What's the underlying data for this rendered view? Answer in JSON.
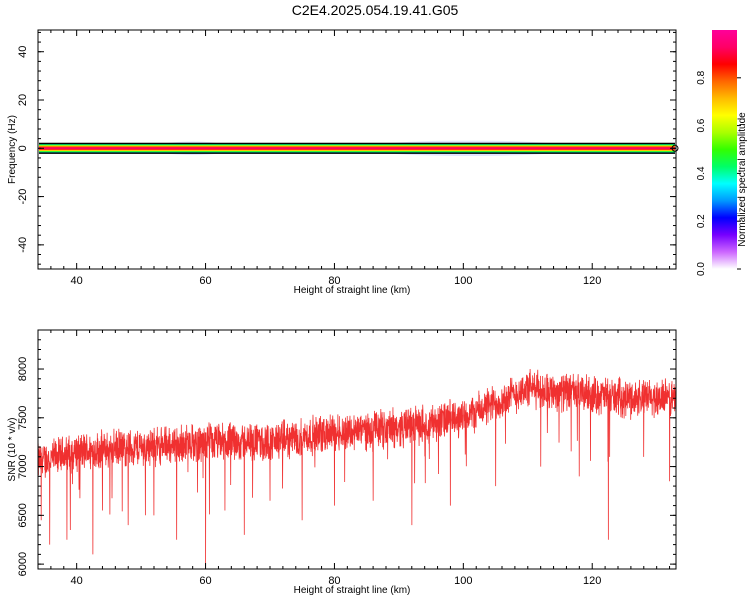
{
  "page": {
    "title": "C2E4.2025.054.19.41.G05"
  },
  "chart_data": [
    {
      "type": "heatmap",
      "xlabel": "Height of straight line (km)",
      "ylabel": "Frequency (Hz)",
      "xlim": [
        34,
        133
      ],
      "ylim": [
        -50,
        49
      ],
      "xticks": [
        40,
        60,
        80,
        100,
        120
      ],
      "yticks": [
        -40,
        -20,
        0,
        20,
        40
      ],
      "xtick_labels": [
        "40",
        "60",
        "80",
        "100",
        "120"
      ],
      "ytick_labels": [
        "-40",
        "-20",
        "0",
        "20",
        "40"
      ],
      "grid": false,
      "band": {
        "center_hz": 0,
        "bands": [
          {
            "half_width_hz": 2.0,
            "color": "#00ffff"
          },
          {
            "half_width_hz": 1.6,
            "color": "#00ff44"
          },
          {
            "half_width_hz": 1.2,
            "color": "#ffee00"
          },
          {
            "half_width_hz": 0.8,
            "color": "#ff4000"
          },
          {
            "half_width_hz": 0.4,
            "color": "#ff0060"
          }
        ],
        "faint_regions": [
          {
            "x_start": 52,
            "x_end": 64,
            "half_width_hz": 2.8
          },
          {
            "x_start": 84,
            "x_end": 118,
            "half_width_hz": 3.2
          }
        ]
      },
      "colorbar": {
        "label": "Normalized spectral amplitude",
        "range": [
          0,
          1
        ],
        "ticks": [
          0.0,
          0.2,
          0.4,
          0.6,
          0.8
        ],
        "tick_labels": [
          "0.0",
          "0.2",
          "0.4",
          "0.6",
          "0.8"
        ],
        "colors": [
          "#ffffff",
          "#cc66ff",
          "#7700ff",
          "#0000ff",
          "#0099ff",
          "#00ffff",
          "#00ff66",
          "#33ff00",
          "#aaff00",
          "#ffff00",
          "#ffbb00",
          "#ff6600",
          "#ff0000",
          "#ff0066",
          "#ff0099"
        ]
      }
    },
    {
      "type": "line",
      "xlabel": "Height of straight line (km)",
      "ylabel": "SNR (10 * v/v)",
      "xlim": [
        34,
        133
      ],
      "ylim": [
        5950,
        8400
      ],
      "xticks": [
        40,
        60,
        80,
        100,
        120
      ],
      "yticks": [
        6000,
        6500,
        7000,
        7500,
        8000
      ],
      "xtick_labels": [
        "40",
        "60",
        "80",
        "100",
        "120"
      ],
      "ytick_labels": [
        "6000",
        "6500",
        "7000",
        "7500",
        "8000"
      ],
      "grid": false,
      "series": [
        {
          "color": "#f03030",
          "trend": [
            [
              34,
              7050
            ],
            [
              40,
              7150
            ],
            [
              50,
              7200
            ],
            [
              60,
              7250
            ],
            [
              70,
              7250
            ],
            [
              80,
              7350
            ],
            [
              90,
              7400
            ],
            [
              100,
              7500
            ],
            [
              105,
              7650
            ],
            [
              110,
              7800
            ],
            [
              118,
              7750
            ],
            [
              125,
              7700
            ],
            [
              133,
              7700
            ]
          ],
          "noise_amplitude": 230,
          "dips": [
            {
              "x": 34.5,
              "y": 6450
            },
            {
              "x": 35.8,
              "y": 6200
            },
            {
              "x": 38.5,
              "y": 6250
            },
            {
              "x": 39.0,
              "y": 6350
            },
            {
              "x": 42.5,
              "y": 6100
            },
            {
              "x": 44.0,
              "y": 6550
            },
            {
              "x": 48.0,
              "y": 6400
            },
            {
              "x": 52.0,
              "y": 6500
            },
            {
              "x": 55.5,
              "y": 6250
            },
            {
              "x": 60.0,
              "y": 5950
            },
            {
              "x": 63.0,
              "y": 6550
            },
            {
              "x": 66.0,
              "y": 6300
            },
            {
              "x": 70.0,
              "y": 6650
            },
            {
              "x": 75.0,
              "y": 6450
            },
            {
              "x": 80.0,
              "y": 6600
            },
            {
              "x": 86.0,
              "y": 6650
            },
            {
              "x": 92.0,
              "y": 6400
            },
            {
              "x": 98.0,
              "y": 6600
            },
            {
              "x": 105.0,
              "y": 6800
            },
            {
              "x": 112.0,
              "y": 7000
            },
            {
              "x": 118.0,
              "y": 6900
            },
            {
              "x": 122.5,
              "y": 6250
            },
            {
              "x": 128.0,
              "y": 7100
            },
            {
              "x": 132.0,
              "y": 6850
            }
          ]
        }
      ]
    }
  ]
}
